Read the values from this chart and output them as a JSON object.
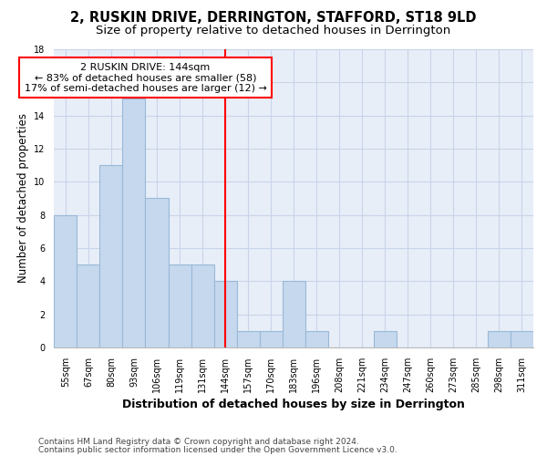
{
  "title1": "2, RUSKIN DRIVE, DERRINGTON, STAFFORD, ST18 9LD",
  "title2": "Size of property relative to detached houses in Derrington",
  "xlabel": "Distribution of detached houses by size in Derrington",
  "ylabel": "Number of detached properties",
  "categories": [
    "55sqm",
    "67sqm",
    "80sqm",
    "93sqm",
    "106sqm",
    "119sqm",
    "131sqm",
    "144sqm",
    "157sqm",
    "170sqm",
    "183sqm",
    "196sqm",
    "208sqm",
    "221sqm",
    "234sqm",
    "247sqm",
    "260sqm",
    "273sqm",
    "285sqm",
    "298sqm",
    "311sqm"
  ],
  "values": [
    8,
    5,
    11,
    15,
    9,
    5,
    5,
    4,
    1,
    1,
    4,
    1,
    0,
    0,
    1,
    0,
    0,
    0,
    0,
    1,
    1
  ],
  "bar_color": "#c5d8ed",
  "bar_edgecolor": "#9ab8d8",
  "bar_linewidth": 0.8,
  "marker_category": "144sqm",
  "marker_label": "2 RUSKIN DRIVE: 144sqm",
  "annotation_line1": "← 83% of detached houses are smaller (58)",
  "annotation_line2": "17% of semi-detached houses are larger (12) →",
  "annotation_box_color": "white",
  "annotation_box_edgecolor": "red",
  "marker_line_color": "red",
  "ylim": [
    0,
    18
  ],
  "yticks": [
    0,
    2,
    4,
    6,
    8,
    10,
    12,
    14,
    16,
    18
  ],
  "grid_color": "#c8d4e8",
  "background_color": "#e8eef8",
  "footer1": "Contains HM Land Registry data © Crown copyright and database right 2024.",
  "footer2": "Contains public sector information licensed under the Open Government Licence v3.0.",
  "title1_fontsize": 10.5,
  "title2_fontsize": 9.5,
  "xlabel_fontsize": 9,
  "ylabel_fontsize": 8.5,
  "tick_fontsize": 7,
  "footer_fontsize": 6.5,
  "annotation_fontsize": 8
}
